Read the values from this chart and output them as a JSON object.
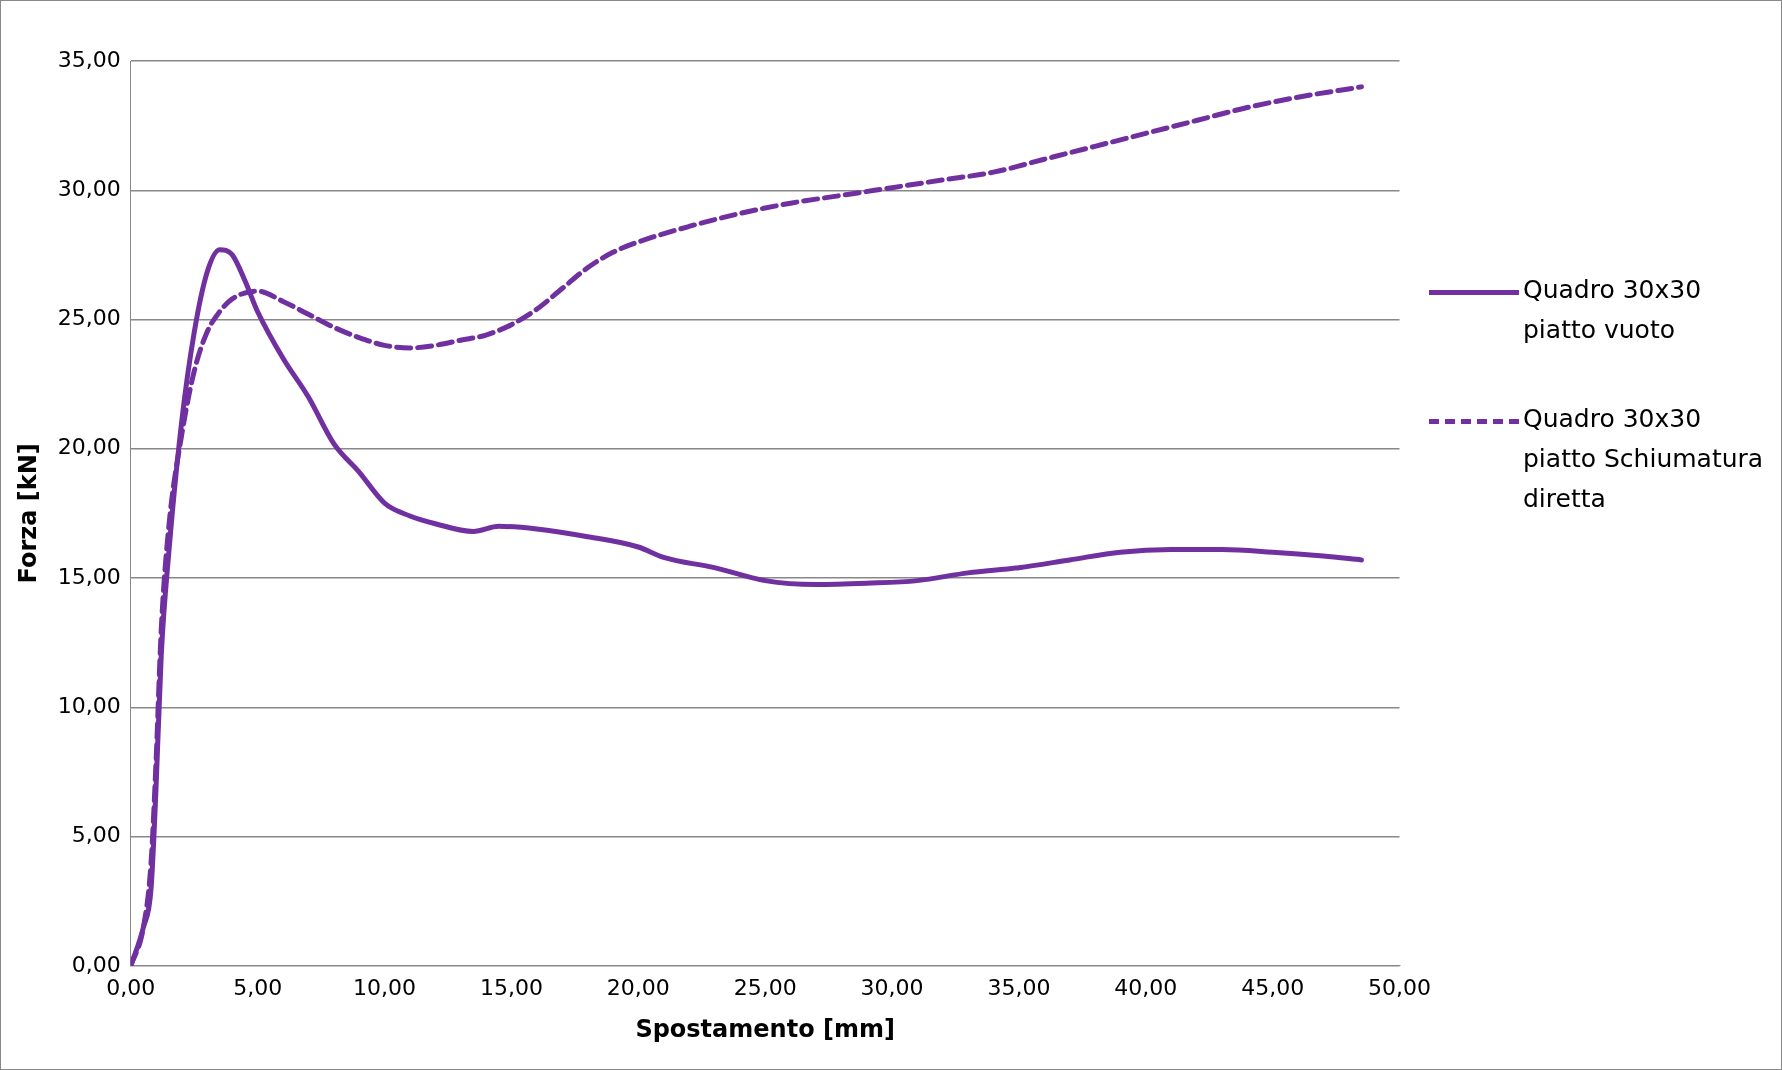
{
  "chart_data": {
    "type": "line",
    "xlabel": "Spostamento [mm]",
    "ylabel": "Forza [kN]",
    "legend": "right",
    "grid": "y",
    "marker": "none",
    "xlim": [
      0,
      50
    ],
    "ylim": [
      0,
      35
    ],
    "xticks": [
      {
        "value": 0,
        "label": "0,00"
      },
      {
        "value": 5,
        "label": "5,00"
      },
      {
        "value": 10,
        "label": "10,00"
      },
      {
        "value": 15,
        "label": "15,00"
      },
      {
        "value": 20,
        "label": "20,00"
      },
      {
        "value": 25,
        "label": "25,00"
      },
      {
        "value": 30,
        "label": "30,00"
      },
      {
        "value": 35,
        "label": "35,00"
      },
      {
        "value": 40,
        "label": "40,00"
      },
      {
        "value": 45,
        "label": "45,00"
      },
      {
        "value": 50,
        "label": "50,00"
      }
    ],
    "yticks": [
      {
        "value": 0,
        "label": "0,00"
      },
      {
        "value": 5,
        "label": "5,00"
      },
      {
        "value": 10,
        "label": "10,00"
      },
      {
        "value": 15,
        "label": "15,00"
      },
      {
        "value": 20,
        "label": "20,00"
      },
      {
        "value": 25,
        "label": "25,00"
      },
      {
        "value": 30,
        "label": "30,00"
      },
      {
        "value": 35,
        "label": "35,00"
      }
    ],
    "series": [
      {
        "name": "Quadro 30x30 piatto vuoto",
        "color": "#7030a0",
        "line_style": "solid",
        "x": [
          0,
          0.5,
          0.8,
          1,
          1.2,
          1.5,
          2,
          2.5,
          3,
          3.5,
          4,
          4.5,
          5,
          6,
          7,
          8,
          9,
          10,
          11,
          12,
          13.5,
          14.5,
          16,
          18,
          20,
          21,
          23,
          25,
          27,
          29,
          31,
          33,
          35,
          37,
          39,
          41,
          43,
          45,
          47,
          48.5
        ],
        "values": [
          0,
          1.5,
          3,
          7,
          12,
          16,
          21,
          24.5,
          26.8,
          27.7,
          27.5,
          26.5,
          25.3,
          23.5,
          22,
          20.2,
          19.1,
          17.9,
          17.4,
          17.1,
          16.8,
          17,
          16.9,
          16.6,
          16.2,
          15.8,
          15.4,
          14.9,
          14.75,
          14.8,
          14.9,
          15.2,
          15.4,
          15.7,
          16,
          16.1,
          16.1,
          16,
          15.85,
          15.7
        ]
      },
      {
        "name": "Quadro 30x30 piatto Schiumatura diretta",
        "color": "#7030a0",
        "line_style": "dashed",
        "x": [
          0,
          0.5,
          0.8,
          1,
          1.2,
          1.5,
          2,
          2.5,
          3,
          3.5,
          4,
          5,
          6,
          7,
          8,
          9,
          10,
          11,
          12,
          13,
          14,
          15,
          16,
          17,
          18,
          19,
          20,
          22,
          24,
          26,
          28,
          30,
          32,
          34,
          36,
          38,
          40,
          42,
          44,
          46,
          48.5
        ],
        "values": [
          0,
          1.5,
          4,
          8,
          13,
          17,
          20.5,
          23,
          24.5,
          25.3,
          25.8,
          26.1,
          25.7,
          25.2,
          24.7,
          24.3,
          24,
          23.9,
          24,
          24.2,
          24.4,
          24.8,
          25.4,
          26.2,
          27,
          27.6,
          28,
          28.6,
          29.1,
          29.5,
          29.8,
          30.1,
          30.4,
          30.7,
          31.2,
          31.7,
          32.2,
          32.7,
          33.2,
          33.6,
          34
        ]
      }
    ]
  }
}
